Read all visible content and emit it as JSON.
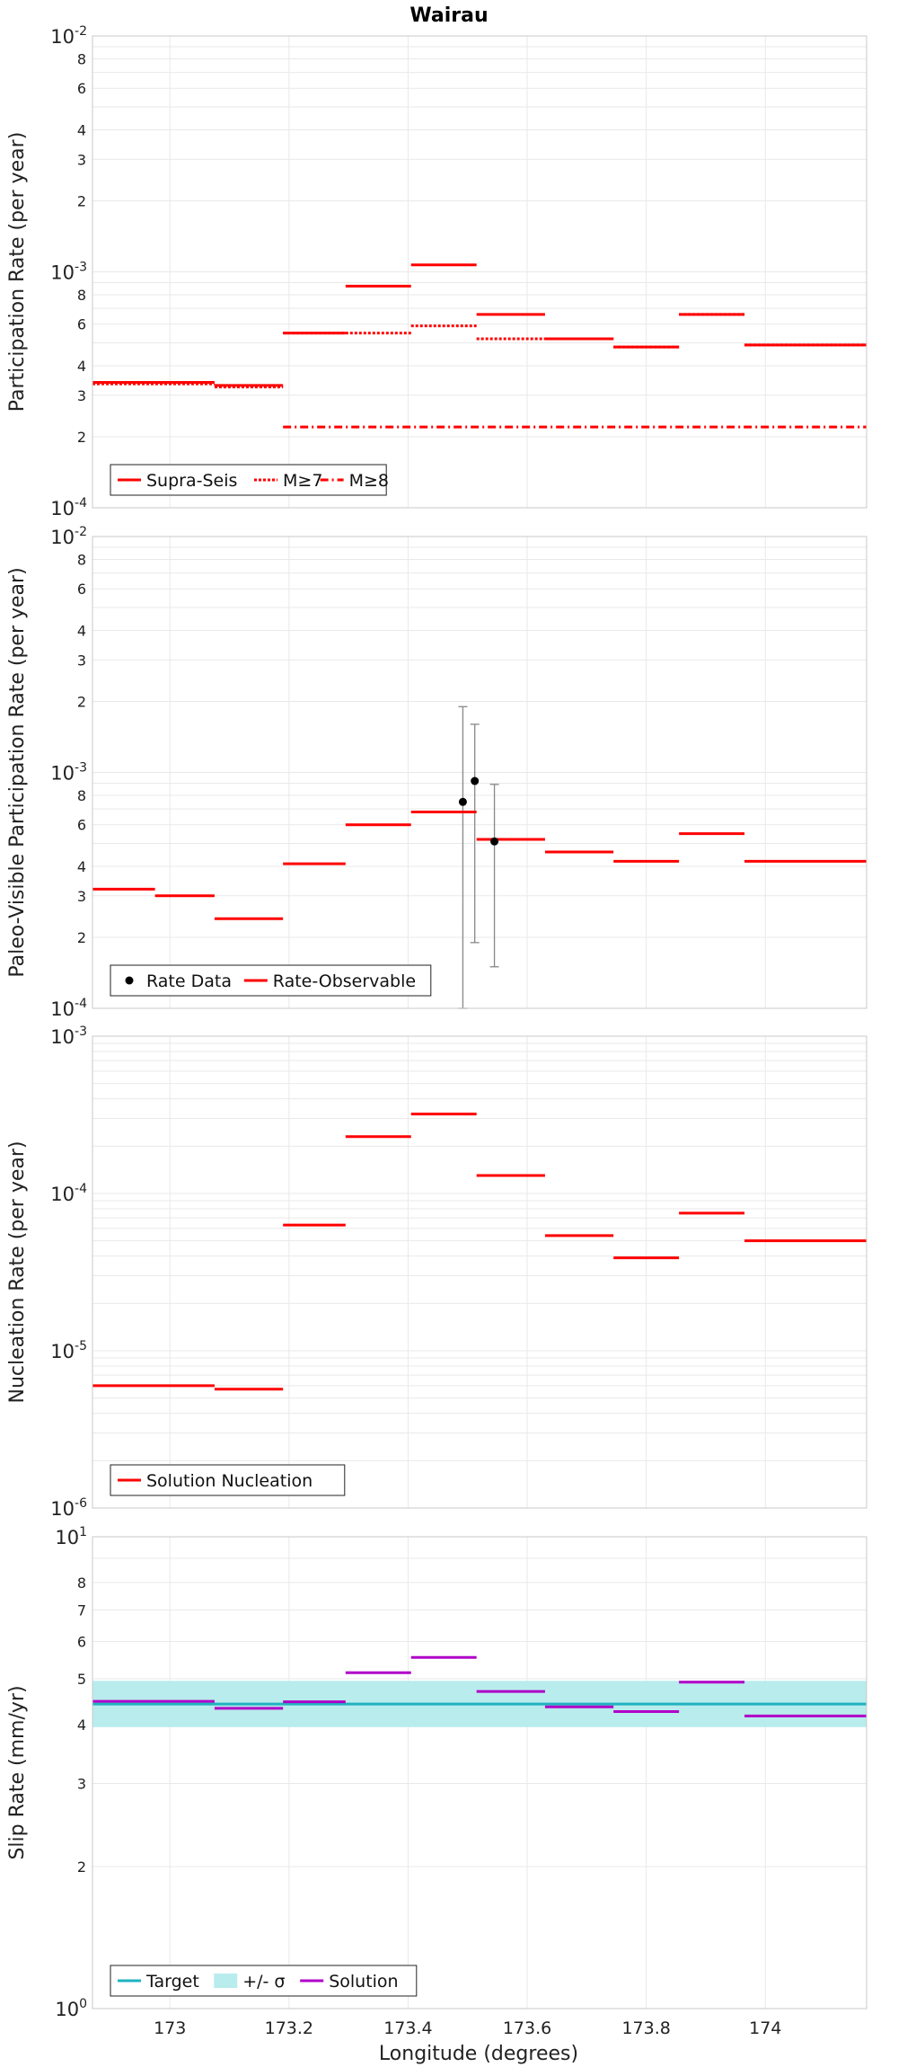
{
  "title": "Wairau",
  "xlabel": "Longitude (degrees)",
  "colors": {
    "red": "#ff0000",
    "magenta": "#b000c8",
    "cyan": "#1fb3c0",
    "band": "#b9ecec",
    "error": "#888888",
    "grid": "#e9e9e9"
  },
  "chart_data": [
    {
      "type": "line",
      "ylabel": "Participation Rate (per year)",
      "yscale": "log",
      "ylim": [
        0.0001,
        0.01
      ],
      "xlim": [
        172.87,
        174.17
      ],
      "xticks": [
        173,
        173.2,
        173.4,
        173.6,
        173.8,
        174
      ],
      "xtick_labels": [
        "173",
        "173.2",
        "173.4",
        "173.6",
        "173.8",
        "174"
      ],
      "ytick_labels": [
        {
          "value": 0.01,
          "base": "10",
          "exp": "-2"
        },
        {
          "value": 0.008,
          "label": "8"
        },
        {
          "value": 0.006,
          "label": "6"
        },
        {
          "value": 0.004,
          "label": "4"
        },
        {
          "value": 0.003,
          "label": "3"
        },
        {
          "value": 0.002,
          "label": "2"
        },
        {
          "value": 0.001,
          "base": "10",
          "exp": "-3"
        },
        {
          "value": 0.0008,
          "label": "8"
        },
        {
          "value": 0.0006,
          "label": "6"
        },
        {
          "value": 0.0004,
          "label": "4"
        },
        {
          "value": 0.0003,
          "label": "3"
        },
        {
          "value": 0.0002,
          "label": "2"
        },
        {
          "value": 0.0001,
          "base": "10",
          "exp": "-4"
        }
      ],
      "series": [
        {
          "name": "Supra-Seis",
          "style": "solid",
          "color": "#ff0000",
          "segments": [
            [
              172.87,
              173.075,
              0.00034
            ],
            [
              173.075,
              173.19,
              0.00033
            ],
            [
              173.19,
              173.295,
              0.00055
            ],
            [
              173.295,
              173.405,
              0.00087
            ],
            [
              173.405,
              173.515,
              0.00107
            ],
            [
              173.515,
              173.63,
              0.00066
            ],
            [
              173.63,
              173.745,
              0.00052
            ],
            [
              173.745,
              173.855,
              0.00048
            ],
            [
              173.855,
              173.965,
              0.00066
            ],
            [
              173.965,
              174.17,
              0.00049
            ]
          ]
        },
        {
          "name": "M≥7",
          "style": "dotted",
          "color": "#ff0000",
          "segments": [
            [
              172.87,
              173.075,
              0.000335
            ],
            [
              173.075,
              173.19,
              0.000325
            ],
            [
              173.19,
              173.295,
              0.00055
            ],
            [
              173.295,
              173.405,
              0.00055
            ],
            [
              173.405,
              173.515,
              0.00059
            ],
            [
              173.515,
              173.63,
              0.00052
            ],
            [
              173.63,
              173.745,
              0.00052
            ],
            [
              173.745,
              173.855,
              0.00048
            ],
            [
              173.855,
              173.965,
              0.00066
            ],
            [
              173.965,
              174.17,
              0.00049
            ]
          ]
        },
        {
          "name": "M≥8",
          "style": "dashdot",
          "color": "#ff0000",
          "segments": [
            [
              173.19,
              174.17,
              0.00022
            ]
          ]
        }
      ],
      "legend": {
        "position": "bottom-left",
        "entries": [
          {
            "label": "Supra-Seis",
            "style": "solid"
          },
          {
            "label": "M≥7",
            "style": "dotted"
          },
          {
            "label": "M≥8",
            "style": "dashdot"
          }
        ]
      }
    },
    {
      "type": "line",
      "ylabel": "Paleo-Visible Participation Rate (per year)",
      "yscale": "log",
      "ylim": [
        0.0001,
        0.01
      ],
      "xlim": [
        172.87,
        174.17
      ],
      "ytick_labels": [
        {
          "value": 0.01,
          "base": "10",
          "exp": "-2"
        },
        {
          "value": 0.008,
          "label": "8"
        },
        {
          "value": 0.006,
          "label": "6"
        },
        {
          "value": 0.004,
          "label": "4"
        },
        {
          "value": 0.003,
          "label": "3"
        },
        {
          "value": 0.002,
          "label": "2"
        },
        {
          "value": 0.001,
          "base": "10",
          "exp": "-3"
        },
        {
          "value": 0.0008,
          "label": "8"
        },
        {
          "value": 0.0006,
          "label": "6"
        },
        {
          "value": 0.0004,
          "label": "4"
        },
        {
          "value": 0.0003,
          "label": "3"
        },
        {
          "value": 0.0002,
          "label": "2"
        },
        {
          "value": 0.0001,
          "base": "10",
          "exp": "-4"
        }
      ],
      "series": [
        {
          "name": "Rate-Observable",
          "style": "solid",
          "color": "#ff0000",
          "segments": [
            [
              172.87,
              172.975,
              0.00032
            ],
            [
              172.975,
              173.075,
              0.0003
            ],
            [
              173.075,
              173.19,
              0.00024
            ],
            [
              173.19,
              173.295,
              0.00041
            ],
            [
              173.295,
              173.405,
              0.0006
            ],
            [
              173.405,
              173.515,
              0.00068
            ],
            [
              173.515,
              173.63,
              0.00052
            ],
            [
              173.63,
              173.745,
              0.00046
            ],
            [
              173.745,
              173.855,
              0.00042
            ],
            [
              173.855,
              173.965,
              0.00055
            ],
            [
              173.965,
              174.17,
              0.00042
            ]
          ]
        }
      ],
      "points": [
        {
          "x": 173.492,
          "y": 0.00075,
          "ylow": 0.0001,
          "yhigh": 0.0019
        },
        {
          "x": 173.512,
          "y": 0.00092,
          "ylow": 0.00019,
          "yhigh": 0.0016
        },
        {
          "x": 173.545,
          "y": 0.00051,
          "ylow": 0.00015,
          "yhigh": 0.00089
        }
      ],
      "legend": {
        "position": "bottom-left",
        "entries": [
          {
            "label": "Rate Data",
            "style": "point"
          },
          {
            "label": "Rate-Observable",
            "style": "solid"
          }
        ]
      }
    },
    {
      "type": "line",
      "ylabel": "Nucleation Rate (per year)",
      "yscale": "log",
      "ylim": [
        1e-06,
        0.001
      ],
      "xlim": [
        172.87,
        174.17
      ],
      "ytick_labels": [
        {
          "value": 0.001,
          "base": "10",
          "exp": "-3"
        },
        {
          "value": 0.0001,
          "base": "10",
          "exp": "-4"
        },
        {
          "value": 1e-05,
          "base": "10",
          "exp": "-5"
        },
        {
          "value": 1e-06,
          "base": "10",
          "exp": "-6"
        }
      ],
      "series": [
        {
          "name": "Solution Nucleation",
          "style": "solid",
          "color": "#ff0000",
          "segments": [
            [
              172.87,
              173.075,
              6e-06
            ],
            [
              173.075,
              173.19,
              5.7e-06
            ],
            [
              173.19,
              173.295,
              6.3e-05
            ],
            [
              173.295,
              173.405,
              0.00023
            ],
            [
              173.405,
              173.515,
              0.00032
            ],
            [
              173.515,
              173.63,
              0.00013
            ],
            [
              173.63,
              173.745,
              5.4e-05
            ],
            [
              173.745,
              173.855,
              3.9e-05
            ],
            [
              173.855,
              173.965,
              7.5e-05
            ],
            [
              173.965,
              174.17,
              5e-05
            ]
          ]
        }
      ],
      "legend": {
        "position": "bottom-left",
        "entries": [
          {
            "label": "Solution Nucleation",
            "style": "solid"
          }
        ]
      }
    },
    {
      "type": "line",
      "ylabel": "Slip Rate (mm/yr)",
      "yscale": "log",
      "ylim": [
        1,
        10
      ],
      "xlim": [
        172.87,
        174.17
      ],
      "ytick_labels": [
        {
          "value": 10,
          "base": "10",
          "exp": "1"
        },
        {
          "value": 8,
          "label": "8"
        },
        {
          "value": 7,
          "label": "7"
        },
        {
          "value": 6,
          "label": "6"
        },
        {
          "value": 5,
          "label": "5"
        },
        {
          "value": 4,
          "label": "4"
        },
        {
          "value": 3,
          "label": "3"
        },
        {
          "value": 2,
          "label": "2"
        },
        {
          "value": 1,
          "base": "10",
          "exp": "0"
        }
      ],
      "band": {
        "name": "+/- σ",
        "low": 3.95,
        "high": 4.95
      },
      "series": [
        {
          "name": "Target",
          "style": "solid",
          "color": "#1fb3c0",
          "value": 4.42
        },
        {
          "name": "Solution",
          "style": "solid",
          "color": "#b000c8",
          "segments": [
            [
              172.87,
              173.075,
              4.48
            ],
            [
              173.075,
              173.19,
              4.33
            ],
            [
              173.19,
              173.295,
              4.47
            ],
            [
              173.295,
              173.405,
              5.15
            ],
            [
              173.405,
              173.515,
              5.55
            ],
            [
              173.515,
              173.63,
              4.7
            ],
            [
              173.63,
              173.745,
              4.36
            ],
            [
              173.745,
              173.855,
              4.26
            ],
            [
              173.855,
              173.965,
              4.92
            ],
            [
              173.965,
              174.17,
              4.17
            ]
          ]
        }
      ],
      "legend": {
        "position": "bottom-left",
        "entries": [
          {
            "label": "Target",
            "style": "cyan"
          },
          {
            "label": "+/- σ",
            "style": "band"
          },
          {
            "label": "Solution",
            "style": "magenta"
          }
        ]
      }
    }
  ]
}
